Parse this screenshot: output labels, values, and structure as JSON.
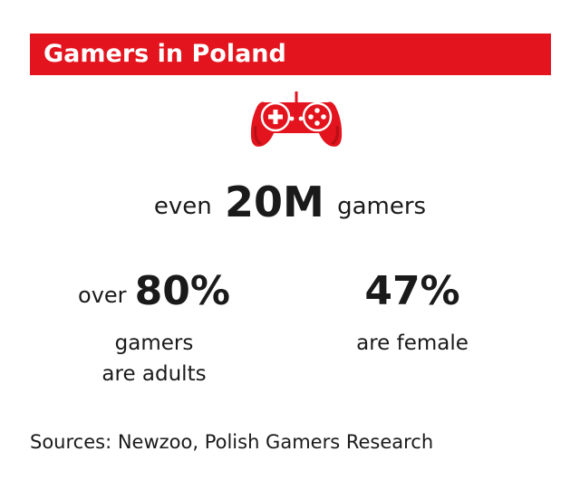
{
  "header": {
    "title": "Gamers in Poland"
  },
  "icon": {
    "name": "gamepad-icon",
    "color": "#e3141d"
  },
  "headline": {
    "prefix": "even",
    "value": "20M",
    "suffix": "gamers"
  },
  "stats": [
    {
      "prefix": "over",
      "value": "80%",
      "line1": "gamers",
      "line2": "are adults"
    },
    {
      "value": "47%",
      "line1": "are female"
    }
  ],
  "footer": {
    "sources": "Sources: Newzoo, Polish Gamers Research"
  },
  "colors": {
    "accent": "#e3141d",
    "text": "#1a1a1a",
    "background": "#ffffff"
  }
}
